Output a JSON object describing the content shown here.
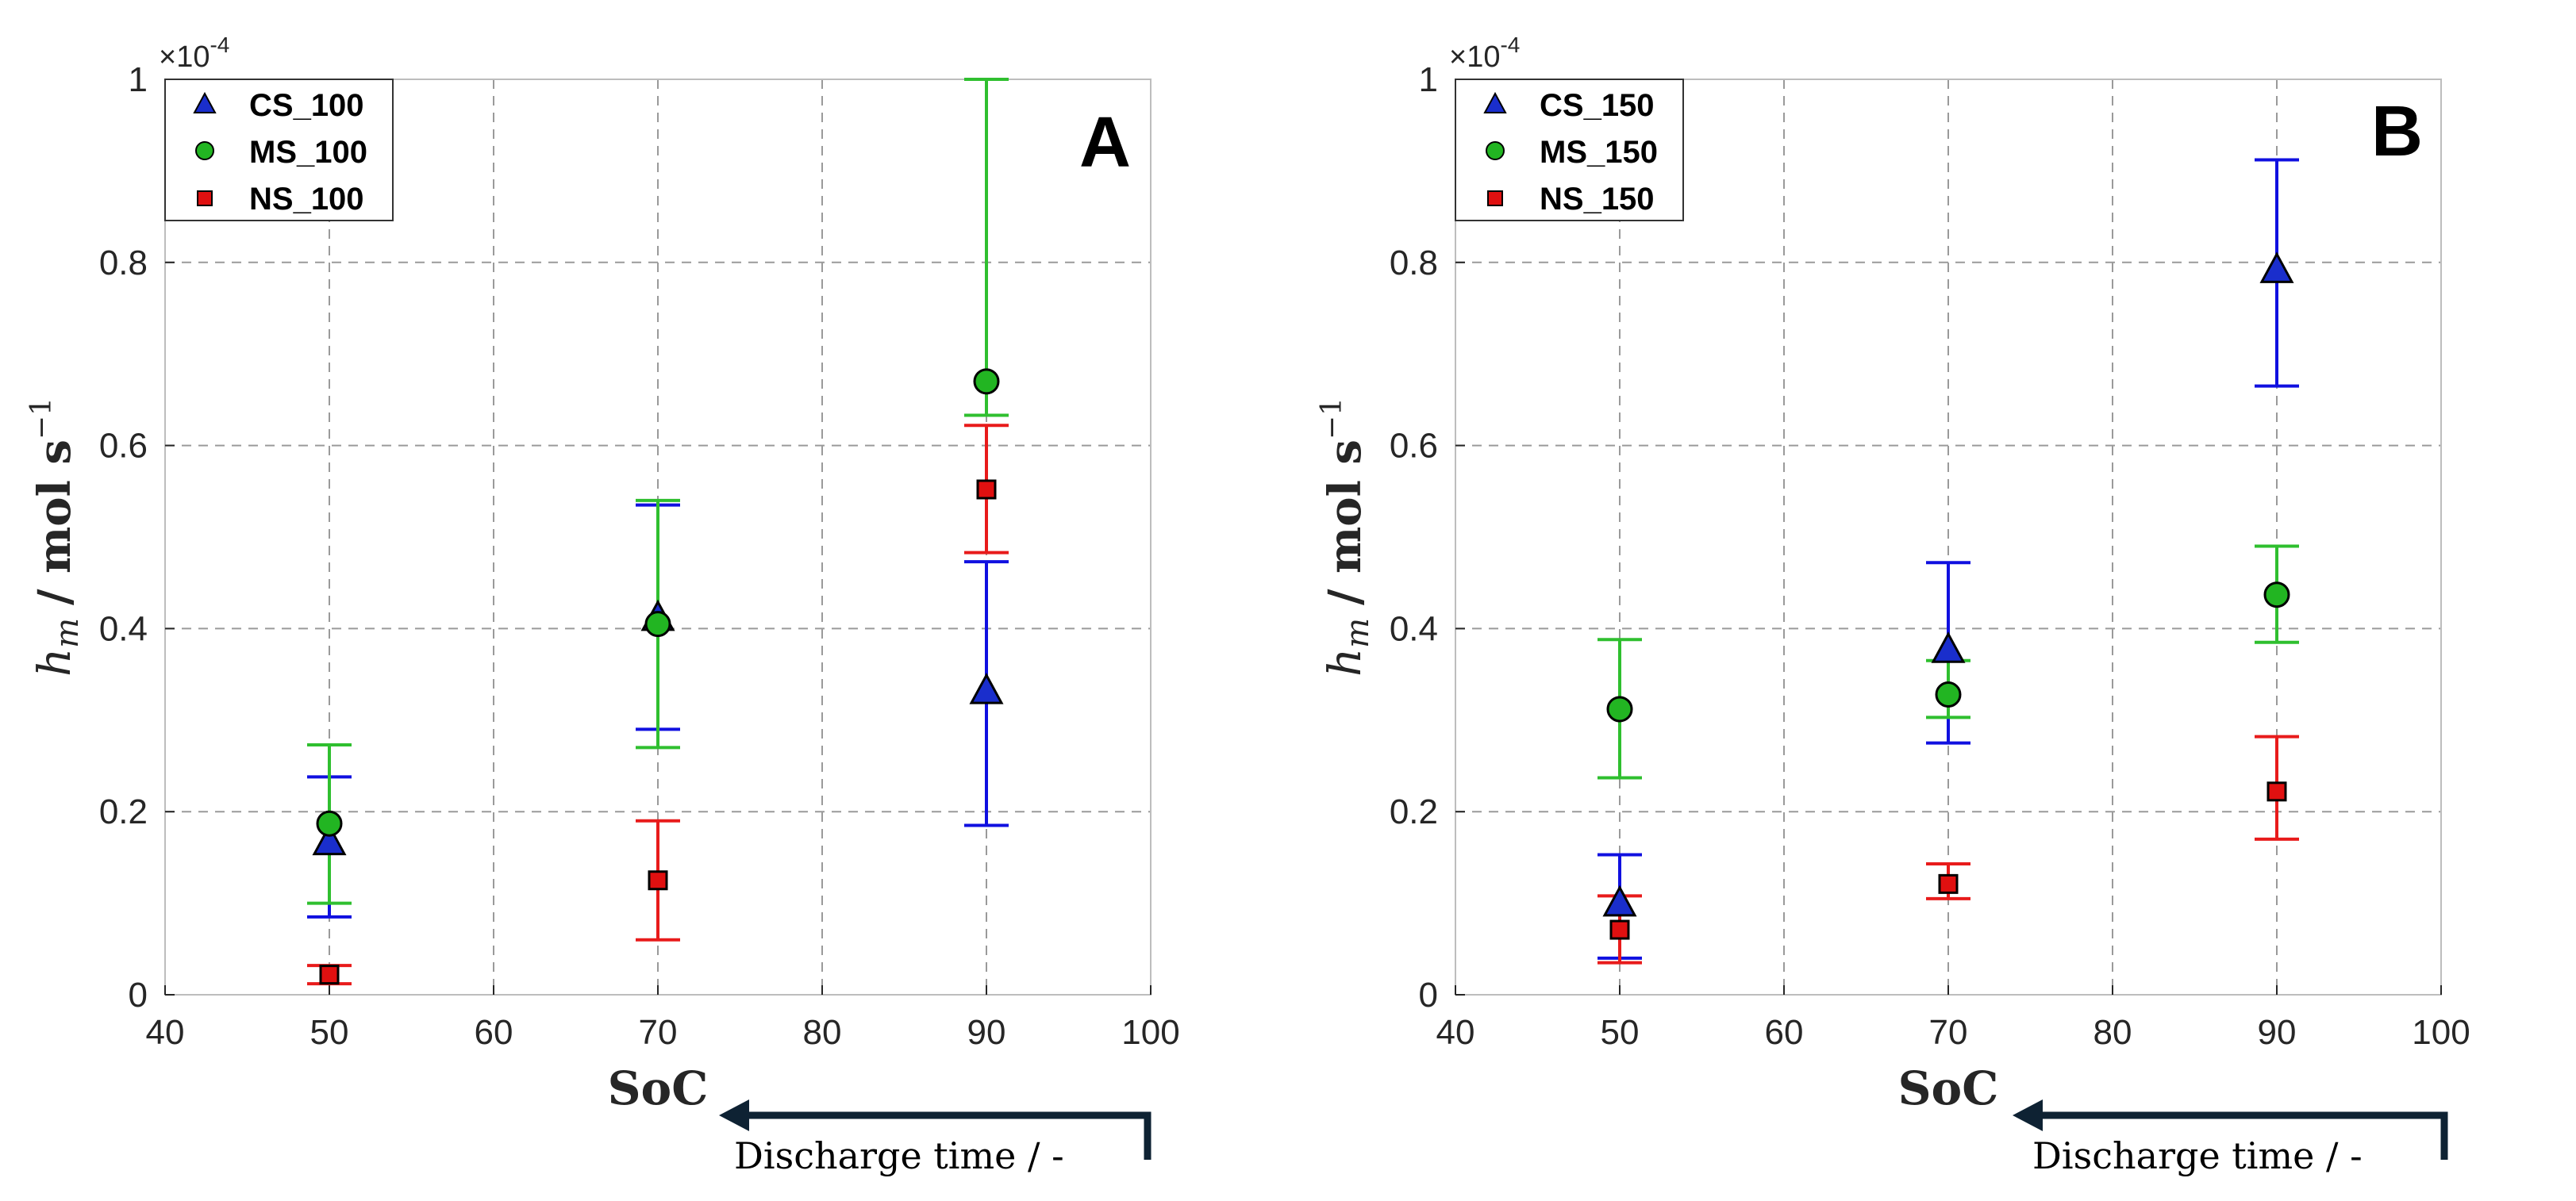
{
  "chart_data": [
    {
      "type": "scatter",
      "panel": "A",
      "xlabel": "SoC",
      "ylabel_main": "h",
      "ylabel_sub": "m",
      "ylabel_units": "/ mol s",
      "ylabel_exp": "−1",
      "y_multiplier": "×10",
      "y_multiplier_exp": "-4",
      "xlim": [
        40,
        100
      ],
      "ylim": [
        0,
        1
      ],
      "x_ticks": [
        40,
        50,
        60,
        70,
        80,
        90,
        100
      ],
      "y_ticks": [
        0,
        0.2,
        0.4,
        0.6,
        0.8,
        1
      ],
      "y_tick_labels": [
        "0",
        "0.2",
        "0.4",
        "0.6",
        "0.8",
        "1"
      ],
      "grid": true,
      "legend_position": "top-left",
      "arrow_label": "Discharge time / -",
      "series": [
        {
          "name": "CS_100",
          "marker": "triangle",
          "color": "#1a2ecc",
          "error_color": "#1010e0",
          "x": [
            50,
            70,
            90
          ],
          "y": [
            0.165,
            0.41,
            0.33
          ],
          "ylow": [
            0.085,
            0.29,
            0.185
          ],
          "yhigh": [
            0.238,
            0.535,
            0.473
          ]
        },
        {
          "name": "MS_100",
          "marker": "circle",
          "color": "#22b522",
          "error_color": "#2fbf2f",
          "x": [
            50,
            70,
            90
          ],
          "y": [
            0.187,
            0.405,
            0.67
          ],
          "ylow": [
            0.1,
            0.27,
            0.633
          ],
          "yhigh": [
            0.273,
            0.54,
            1.0
          ]
        },
        {
          "name": "NS_100",
          "marker": "square",
          "color": "#e01010",
          "error_color": "#e81b1b",
          "x": [
            50,
            70,
            90
          ],
          "y": [
            0.022,
            0.125,
            0.552
          ],
          "ylow": [
            0.012,
            0.06,
            0.483
          ],
          "yhigh": [
            0.032,
            0.19,
            0.622
          ]
        }
      ]
    },
    {
      "type": "scatter",
      "panel": "B",
      "xlabel": "SoC",
      "ylabel_main": "h",
      "ylabel_sub": "m",
      "ylabel_units": "/ mol s",
      "ylabel_exp": "−1",
      "y_multiplier": "×10",
      "y_multiplier_exp": "-4",
      "xlim": [
        40,
        100
      ],
      "ylim": [
        0,
        1
      ],
      "x_ticks": [
        40,
        50,
        60,
        70,
        80,
        90,
        100
      ],
      "y_ticks": [
        0,
        0.2,
        0.4,
        0.6,
        0.8,
        1
      ],
      "y_tick_labels": [
        "0",
        "0.2",
        "0.4",
        "0.6",
        "0.8",
        "1"
      ],
      "grid": true,
      "legend_position": "top-left",
      "arrow_label": "Discharge time / -",
      "series": [
        {
          "name": "CS_150",
          "marker": "triangle",
          "color": "#1a2ecc",
          "error_color": "#1010e0",
          "x": [
            50,
            70,
            90
          ],
          "y": [
            0.098,
            0.375,
            0.79
          ],
          "ylow": [
            0.04,
            0.275,
            0.665
          ],
          "yhigh": [
            0.153,
            0.472,
            0.912
          ]
        },
        {
          "name": "MS_150",
          "marker": "circle",
          "color": "#22b522",
          "error_color": "#2fbf2f",
          "x": [
            50,
            70,
            90
          ],
          "y": [
            0.312,
            0.328,
            0.437
          ],
          "ylow": [
            0.237,
            0.303,
            0.385
          ],
          "yhigh": [
            0.388,
            0.365,
            0.49
          ]
        },
        {
          "name": "NS_150",
          "marker": "square",
          "color": "#e01010",
          "error_color": "#e81b1b",
          "x": [
            50,
            70,
            90
          ],
          "y": [
            0.071,
            0.121,
            0.222
          ],
          "ylow": [
            0.035,
            0.105,
            0.17
          ],
          "yhigh": [
            0.108,
            0.143,
            0.282
          ]
        }
      ]
    }
  ]
}
